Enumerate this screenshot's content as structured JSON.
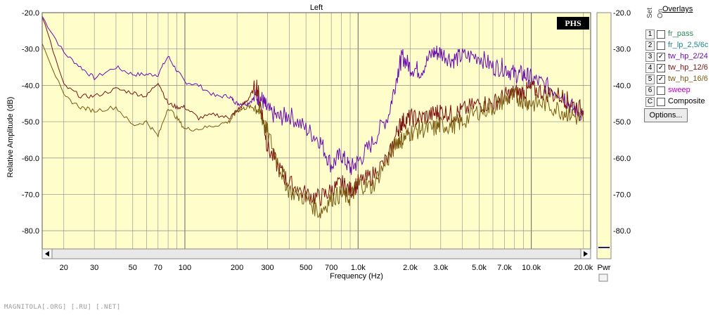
{
  "chart_data": {
    "type": "line",
    "title": "Left",
    "xlabel": "Frequency (Hz)",
    "ylabel": "Relative Amplitude (dB)",
    "x_scale": "log",
    "xlim": [
      15,
      22000
    ],
    "ylim": [
      -85,
      -20
    ],
    "x_ticks": [
      {
        "v": 20,
        "label": "20"
      },
      {
        "v": 30,
        "label": "30"
      },
      {
        "v": 50,
        "label": "50"
      },
      {
        "v": 70,
        "label": "70"
      },
      {
        "v": 100,
        "label": "100"
      },
      {
        "v": 200,
        "label": "200"
      },
      {
        "v": 300,
        "label": "300"
      },
      {
        "v": 500,
        "label": "500"
      },
      {
        "v": 700,
        "label": "700"
      },
      {
        "v": 1000,
        "label": "1.0k"
      },
      {
        "v": 2000,
        "label": "2.0k"
      },
      {
        "v": 3000,
        "label": "3.0k"
      },
      {
        "v": 5000,
        "label": "5.0k"
      },
      {
        "v": 7000,
        "label": "7.0k"
      },
      {
        "v": 10000,
        "label": "10.0k"
      },
      {
        "v": 20000,
        "label": "20.0k"
      }
    ],
    "y_ticks": [
      -20,
      -30,
      -40,
      -50,
      -60,
      -70,
      -80
    ],
    "y_tick_labels": [
      "-20.0",
      "-30.0",
      "-40.0",
      "-50.0",
      "-60.0",
      "-70.0",
      "-80.0"
    ],
    "grid": true,
    "series": [
      {
        "name": "tw_hp_2/24",
        "color": "#6a0dad",
        "x": [
          15,
          20,
          25,
          30,
          40,
          50,
          60,
          70,
          80,
          90,
          100,
          120,
          150,
          180,
          200,
          230,
          260,
          280,
          300,
          350,
          400,
          500,
          600,
          700,
          800,
          900,
          1000,
          1200,
          1500,
          1700,
          1800,
          2000,
          2300,
          2700,
          3000,
          3500,
          4000,
          5000,
          6000,
          7000,
          8000,
          9000,
          10000,
          12000,
          15000,
          17000,
          20000
        ],
        "y": [
          -21,
          -31,
          -35,
          -38,
          -35,
          -37,
          -37,
          -37,
          -32,
          -36,
          -39,
          -40,
          -43,
          -43,
          -45,
          -45,
          -43,
          -44,
          -47,
          -49,
          -48,
          -52,
          -55,
          -62,
          -59,
          -63,
          -61,
          -56,
          -48,
          -36,
          -32,
          -35,
          -36,
          -31,
          -31,
          -33,
          -32,
          -32,
          -35,
          -35,
          -37,
          -37,
          -38,
          -40,
          -42,
          -46,
          -48
        ]
      },
      {
        "name": "tw_hp_12/6",
        "color": "#7a1010",
        "x": [
          15,
          20,
          25,
          30,
          40,
          50,
          60,
          70,
          80,
          90,
          100,
          120,
          150,
          180,
          200,
          230,
          260,
          280,
          300,
          350,
          400,
          500,
          600,
          700,
          800,
          900,
          1000,
          1200,
          1500,
          1700,
          1800,
          2000,
          2300,
          2700,
          3000,
          3500,
          4000,
          5000,
          6000,
          7000,
          8000,
          9000,
          10000,
          12000,
          15000,
          17000,
          20000
        ],
        "y": [
          -21,
          -40,
          -43,
          -43,
          -41,
          -42,
          -43,
          -39,
          -45,
          -46,
          -46,
          -49,
          -48,
          -49,
          -47,
          -44,
          -40,
          -48,
          -57,
          -63,
          -67,
          -70,
          -71,
          -69,
          -67,
          -69,
          -67,
          -65,
          -60,
          -52,
          -50,
          -49,
          -49,
          -48,
          -47,
          -48,
          -47,
          -45,
          -45,
          -43,
          -42,
          -42,
          -41,
          -42,
          -43,
          -45,
          -47
        ]
      },
      {
        "name": "tw_hp_16/6",
        "color": "#7a5a10",
        "x": [
          15,
          20,
          25,
          30,
          40,
          50,
          60,
          70,
          80,
          90,
          100,
          120,
          150,
          180,
          200,
          230,
          260,
          280,
          300,
          350,
          400,
          500,
          600,
          700,
          800,
          900,
          1000,
          1200,
          1500,
          1700,
          1800,
          2000,
          2300,
          2700,
          3000,
          3500,
          4000,
          5000,
          6000,
          7000,
          8000,
          9000,
          10000,
          12000,
          15000,
          17000,
          20000
        ],
        "y": [
          -28,
          -43,
          -46,
          -47,
          -46,
          -51,
          -50,
          -54,
          -46,
          -49,
          -52,
          -52,
          -51,
          -50,
          -47,
          -46,
          -46,
          -49,
          -53,
          -62,
          -69,
          -71,
          -75,
          -71,
          -70,
          -71,
          -67,
          -68,
          -60,
          -55,
          -55,
          -53,
          -52,
          -52,
          -51,
          -51,
          -50,
          -47,
          -46,
          -44,
          -43,
          -44,
          -45,
          -45,
          -47,
          -48,
          -50
        ]
      }
    ]
  },
  "right_axis_label": "Pwr",
  "phs_badge": "PHS",
  "overlays": {
    "title": "Overlays",
    "set_label": "Set",
    "on_label": "On",
    "options_label": "Options...",
    "items": [
      {
        "num": "1",
        "name": "fr_pass",
        "checked": false,
        "color": "#2e8b57"
      },
      {
        "num": "2",
        "name": "fr_lp_2,5/6c",
        "checked": false,
        "color": "#1a8a8a"
      },
      {
        "num": "3",
        "name": "tw_hp_2/24",
        "checked": true,
        "color": "#6a0dad"
      },
      {
        "num": "4",
        "name": "tw_hp_12/6",
        "checked": true,
        "color": "#7a1010"
      },
      {
        "num": "5",
        "name": "tw_hp_16/6",
        "checked": true,
        "color": "#7a5a10"
      },
      {
        "num": "6",
        "name": "sweep",
        "checked": false,
        "color": "#c000c0"
      },
      {
        "num": "C",
        "name": "Composite",
        "checked": false,
        "color": "#000000"
      }
    ]
  },
  "footer": "MAGNITOLA[.ORG] [.RU] [.NET]"
}
